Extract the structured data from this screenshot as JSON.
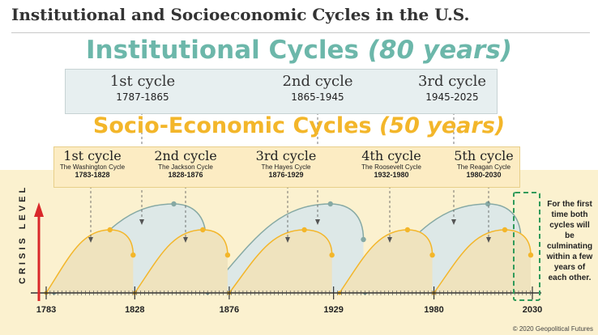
{
  "title": "Institutional and Socioeconomic Cycles in the U.S.",
  "institutional": {
    "heading": "Institutional Cycles",
    "heading_suffix": "(80 years)",
    "cycles": [
      {
        "name": "1st cycle",
        "years": "1787-1865"
      },
      {
        "name": "2nd cycle",
        "years": "1865-1945"
      },
      {
        "name": "3rd cycle",
        "years": "1945-2025"
      }
    ]
  },
  "socioeconomic": {
    "heading": "Socio-Economic Cycles",
    "heading_suffix": "(50 years)",
    "cycles": [
      {
        "name": "1st cycle",
        "subtitle": "The Washington Cycle",
        "years": "1783-1828"
      },
      {
        "name": "2nd cycle",
        "subtitle": "The Jackson Cycle",
        "years": "1828-1876"
      },
      {
        "name": "3rd cycle",
        "subtitle": "The Hayes Cycle",
        "years": "1876-1929"
      },
      {
        "name": "4th cycle",
        "subtitle": "The Roosevelt Cycle",
        "years": "1932-1980"
      },
      {
        "name": "5th cycle",
        "subtitle": "The Reagan Cycle",
        "years": "1980-2030"
      }
    ]
  },
  "y_axis_label": "CRISIS LEVEL",
  "x_ticks": [
    "1783",
    "1828",
    "1876",
    "1929",
    "1980",
    "2030"
  ],
  "note": "For the first time both cycles will be culminating within a few years of each other.",
  "copyright": "© 2020 Geopolitical Futures",
  "colors": {
    "institutional": "#6cb7aa",
    "institutional_fill": "#dde8e7",
    "institutional_curve": "#86a9a4",
    "socioeconomic": "#f3b62a",
    "socioeconomic_fill": "#efe3be",
    "highlight": "#2f9a5a",
    "axis_arrow": "#d9282a",
    "background_band": "#fbf1cf"
  },
  "chart_data": {
    "type": "area",
    "x_range": [
      1783,
      2030
    ],
    "series": [
      {
        "kind": "institutional",
        "cycles": [
          [
            1787,
            1865
          ],
          [
            1865,
            1945
          ],
          [
            1945,
            2025
          ]
        ]
      },
      {
        "kind": "socioeconomic",
        "cycles": [
          [
            1783,
            1828
          ],
          [
            1828,
            1876
          ],
          [
            1876,
            1929
          ],
          [
            1932,
            1980
          ],
          [
            1980,
            2030
          ]
        ]
      }
    ]
  }
}
